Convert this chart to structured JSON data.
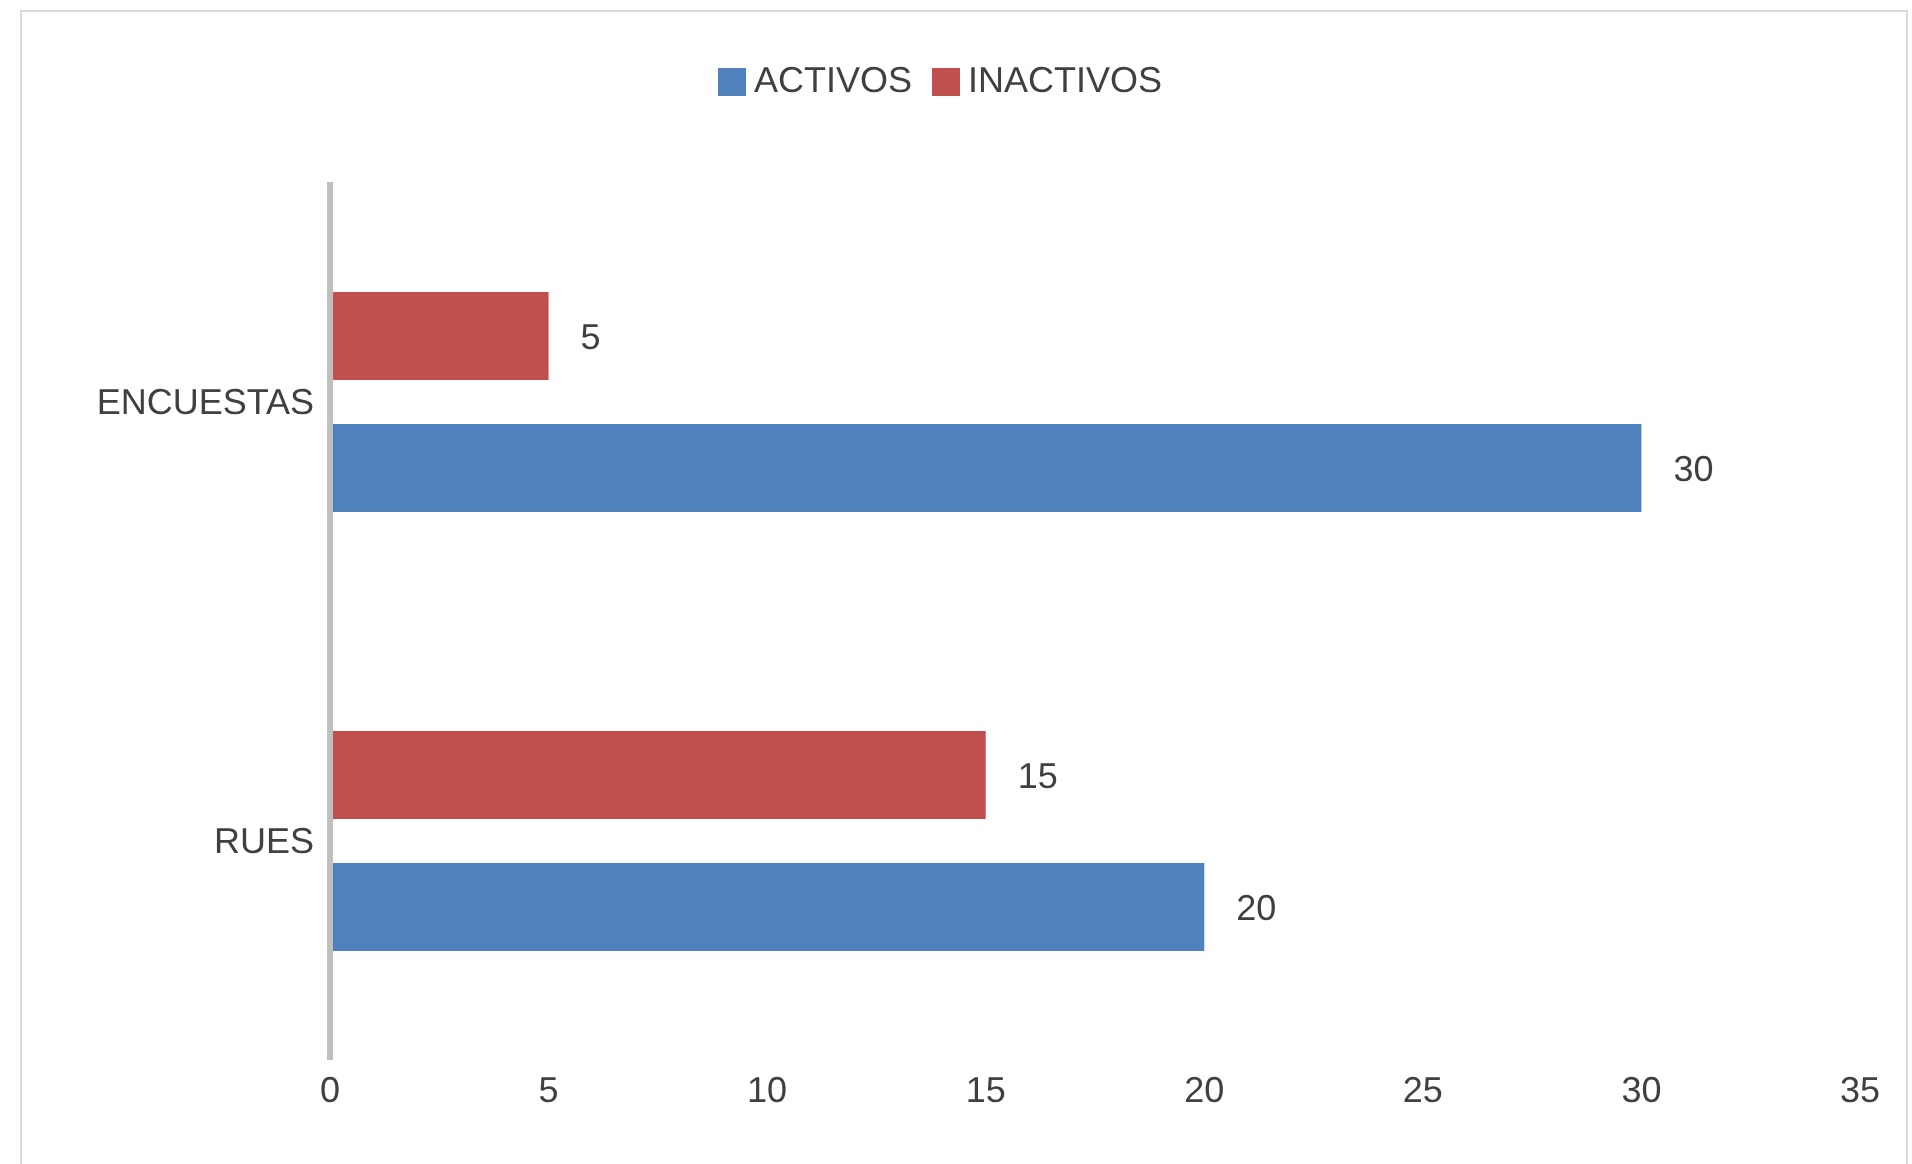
{
  "chart_data": {
    "type": "bar",
    "orientation": "horizontal",
    "categories": [
      "ENCUESTAS",
      "RUES"
    ],
    "series": [
      {
        "name": "INACTIVOS",
        "color": "#c0504d",
        "values": [
          5,
          15
        ]
      },
      {
        "name": "ACTIVOS",
        "color": "#4f81bd",
        "values": [
          30,
          20
        ]
      }
    ],
    "xlim": [
      0,
      35
    ],
    "xticks": [
      0,
      5,
      10,
      15,
      20,
      25,
      30,
      35
    ],
    "grid": false,
    "legend": "top",
    "data_labels": true
  }
}
